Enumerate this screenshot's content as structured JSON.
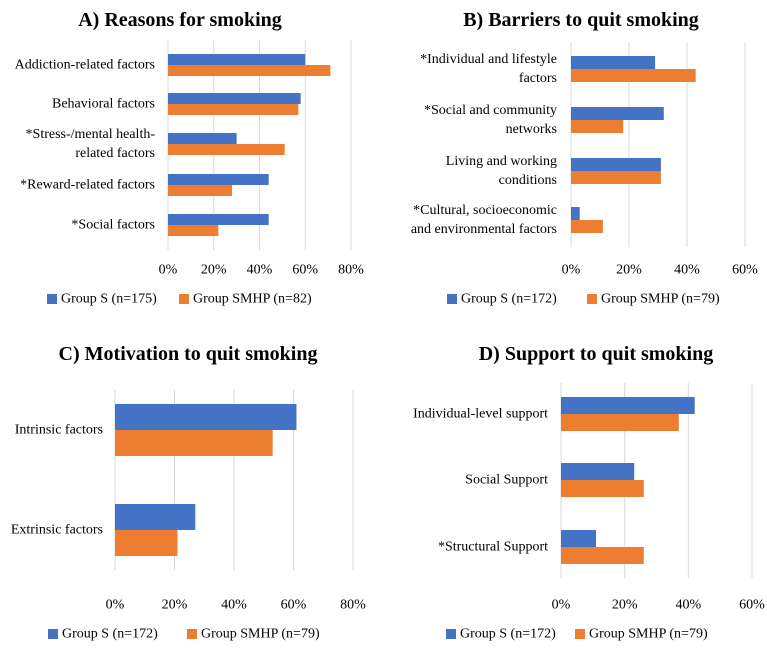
{
  "colors": {
    "group_s": "#4472C4",
    "group_smhp": "#ED7D31",
    "grid": "#D9D9D9"
  },
  "chart_data": [
    {
      "id": "A",
      "type": "bar",
      "orientation": "horizontal",
      "title": "A) Reasons for smoking",
      "categories": [
        [
          "Addiction-related factors"
        ],
        [
          "Behavioral factors"
        ],
        [
          "*Stress-/mental health-",
          "related factors"
        ],
        [
          "*Reward-related factors"
        ],
        [
          "*Social factors"
        ]
      ],
      "series": [
        {
          "name": "Group S (n=175)",
          "values": [
            60,
            58,
            30,
            44,
            44
          ]
        },
        {
          "name": "Group SMHP (n=82)",
          "values": [
            71,
            57,
            51,
            28,
            22
          ]
        }
      ],
      "xlim": [
        0,
        80
      ],
      "ticks": [
        0,
        20,
        40,
        60,
        80
      ],
      "tick_labels": [
        "0%",
        "20%",
        "40%",
        "60%",
        "80%"
      ],
      "grid": true,
      "legend": "bottom"
    },
    {
      "id": "B",
      "type": "bar",
      "orientation": "horizontal",
      "title": "B) Barriers to quit smoking",
      "categories": [
        [
          "*Individual and lifestyle",
          "factors"
        ],
        [
          "*Social and community",
          "networks"
        ],
        [
          "Living and working",
          "conditions"
        ],
        [
          "*Cultural, socioeconomic",
          "and environmental factors"
        ]
      ],
      "series": [
        {
          "name": "Group S (n=172)",
          "values": [
            29,
            32,
            31,
            3
          ]
        },
        {
          "name": "Group SMHP (n=79)",
          "values": [
            43,
            18,
            31,
            11
          ]
        }
      ],
      "xlim": [
        0,
        60
      ],
      "ticks": [
        0,
        20,
        40,
        60
      ],
      "tick_labels": [
        "0%",
        "20%",
        "40%",
        "60%"
      ],
      "grid": true,
      "legend": "bottom"
    },
    {
      "id": "C",
      "type": "bar",
      "orientation": "horizontal",
      "title": "C) Motivation to quit smoking",
      "categories": [
        [
          "Intrinsic factors"
        ],
        [
          "Extrinsic factors"
        ]
      ],
      "series": [
        {
          "name": "Group S (n=172)",
          "values": [
            61,
            27
          ]
        },
        {
          "name": "Group SMHP (n=79)",
          "values": [
            53,
            21
          ]
        }
      ],
      "xlim": [
        0,
        80
      ],
      "ticks": [
        0,
        20,
        40,
        60,
        80
      ],
      "tick_labels": [
        "0%",
        "20%",
        "40%",
        "60%",
        "80%"
      ],
      "grid": true,
      "legend": "bottom"
    },
    {
      "id": "D",
      "type": "bar",
      "orientation": "horizontal",
      "title": "D) Support to quit smoking",
      "categories": [
        [
          "Individual-level support"
        ],
        [
          "Social Support"
        ],
        [
          "*Structural Support"
        ]
      ],
      "series": [
        {
          "name": "Group S (n=172)",
          "values": [
            42,
            23,
            11
          ]
        },
        {
          "name": "Group SMHP (n=79)",
          "values": [
            37,
            26,
            26
          ]
        }
      ],
      "xlim": [
        0,
        60
      ],
      "ticks": [
        0,
        20,
        40,
        60
      ],
      "tick_labels": [
        "0%",
        "20%",
        "40%",
        "60%"
      ],
      "grid": true,
      "legend": "bottom"
    }
  ]
}
